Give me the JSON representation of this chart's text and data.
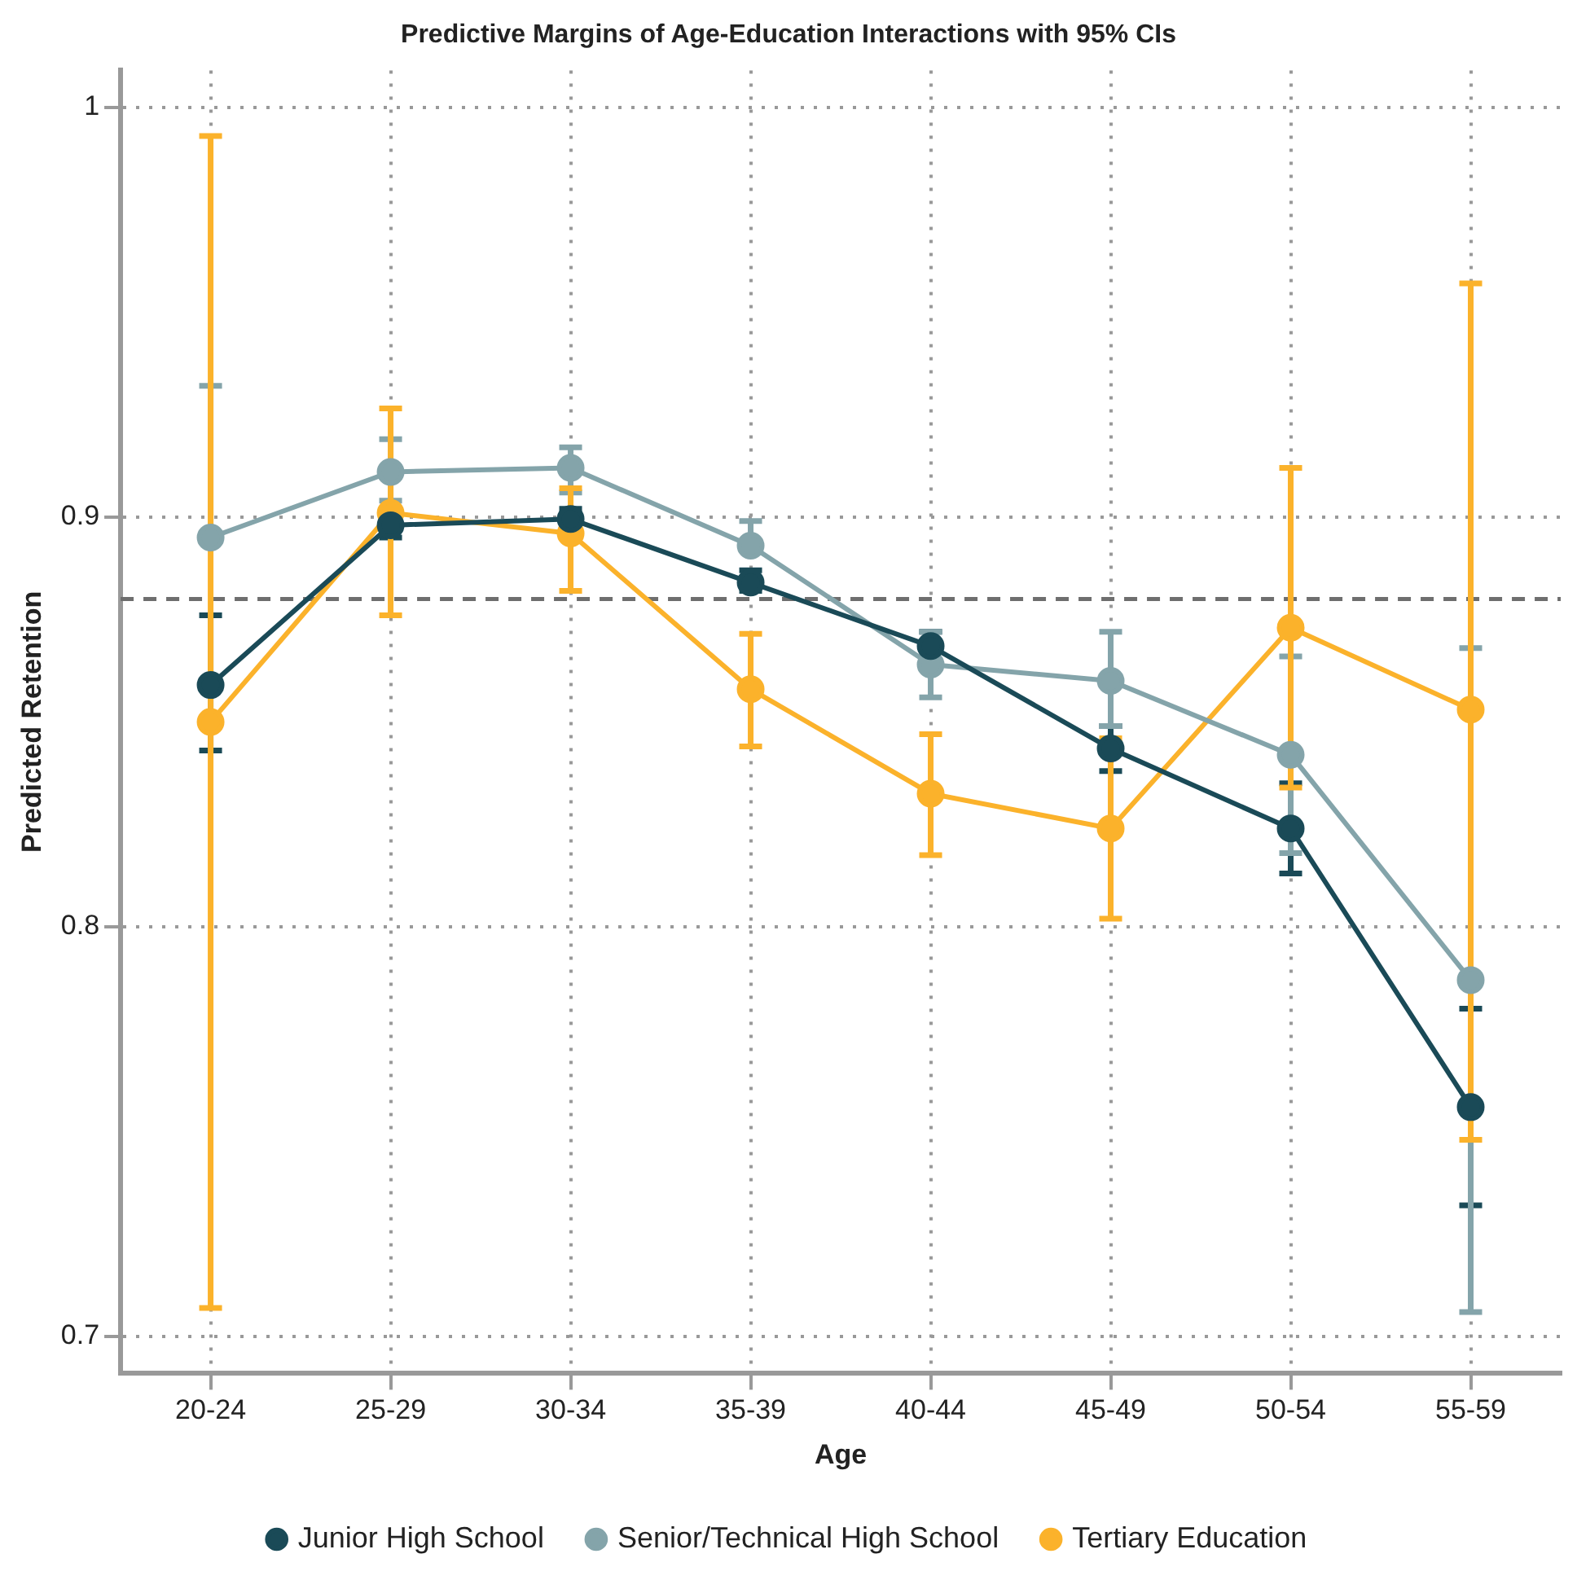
{
  "chart_data": {
    "type": "line",
    "title": "Predictive Margins of Age-Education Interactions with 95% CIs",
    "xlabel": "Age",
    "ylabel": "Predicted Retention",
    "categories": [
      "20-24",
      "25-29",
      "30-34",
      "35-39",
      "40-44",
      "45-49",
      "50-54",
      "55-59"
    ],
    "series": [
      {
        "name": "Junior High School",
        "color": "#1a4a57",
        "values": [
          0.859,
          0.898,
          0.8995,
          0.884,
          0.8685,
          0.8435,
          0.824,
          0.756
        ],
        "errors": [
          [
            0.843,
            0.876
          ],
          [
            0.895,
            0.902
          ],
          [
            0.897,
            0.902
          ],
          [
            0.882,
            0.887
          ],
          [
            0.865,
            0.872
          ],
          [
            0.838,
            0.849
          ],
          [
            0.813,
            0.835
          ],
          [
            0.732,
            0.78
          ]
        ]
      },
      {
        "name": "Senior/Technical High School",
        "color": "#84a4aa",
        "values": [
          0.895,
          0.911,
          0.912,
          0.893,
          0.864,
          0.86,
          0.842,
          0.787
        ],
        "errors": [
          [
            0.895,
            0.932
          ],
          [
            0.904,
            0.919
          ],
          [
            0.906,
            0.917
          ],
          [
            0.893,
            0.899
          ],
          [
            0.856,
            0.872
          ],
          [
            0.849,
            0.872
          ],
          [
            0.818,
            0.866
          ],
          [
            0.706,
            0.868
          ]
        ]
      },
      {
        "name": "Tertiary Education",
        "color": "#fbb22b",
        "values": [
          0.85,
          0.901,
          0.896,
          0.858,
          0.8325,
          0.824,
          0.873,
          0.853
        ],
        "errors": [
          [
            0.707,
            0.993
          ],
          [
            0.876,
            0.9265
          ],
          [
            0.882,
            0.907
          ],
          [
            0.844,
            0.8715
          ],
          [
            0.8175,
            0.847
          ],
          [
            0.802,
            0.846
          ],
          [
            0.834,
            0.912
          ],
          [
            0.748,
            0.957
          ]
        ]
      }
    ],
    "ylim": [
      0.691,
      1.009
    ],
    "yticks": [
      0.7,
      0.8,
      0.9,
      1
    ],
    "ref_lines": [
      {
        "axis": "y",
        "value": 0.88,
        "color": "#6e6e6e",
        "line_style": "dashed"
      }
    ],
    "grid": true,
    "legend": "bottom",
    "marker": "circle",
    "line_style": "solid"
  }
}
